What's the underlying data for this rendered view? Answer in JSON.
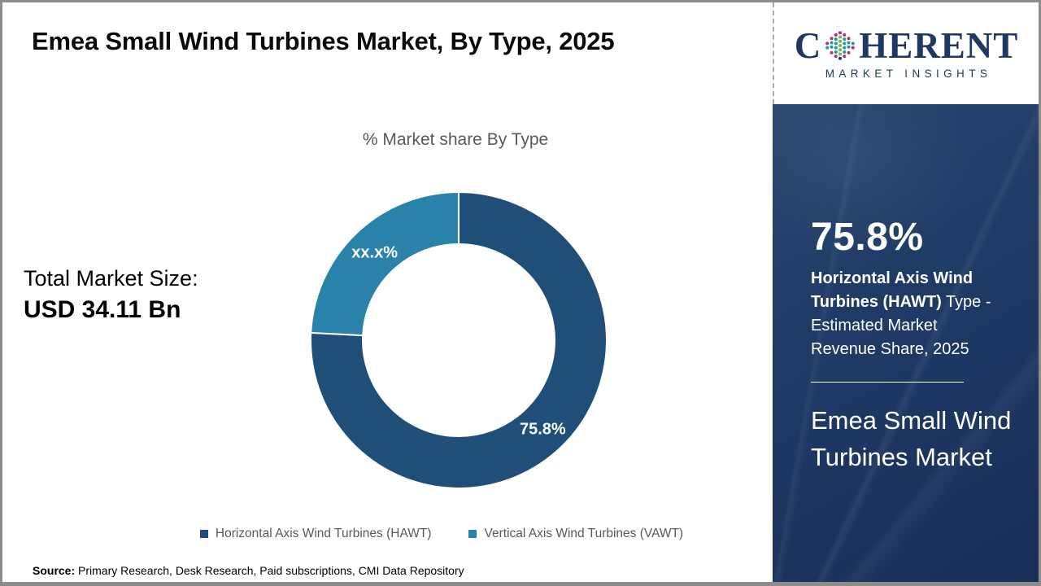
{
  "page": {
    "title": "Emea Small Wind Turbines Market, By Type, 2025"
  },
  "logo": {
    "brand_first_letter": "C",
    "brand_rest": "HERENT",
    "tagline": "MARKET INSIGHTS",
    "brand_color": "#1F3864"
  },
  "chart_data": {
    "type": "donut",
    "title": "% Market share By Type",
    "categories": [
      "Horizontal Axis Wind Turbines (HAWT)",
      "Vertical Axis Wind Turbines (VAWT)"
    ],
    "values": [
      75.8,
      24.2
    ],
    "slice_labels": [
      "75.8%",
      "xx.x%"
    ],
    "colors": [
      "#1F4E79",
      "#2882A9"
    ],
    "legend_position": "bottom",
    "start_angle_deg": 0,
    "direction": "clockwise"
  },
  "total": {
    "label": "Total Market Size:",
    "value": "USD 34.11 Bn"
  },
  "sidebar": {
    "stat_value": "75.8%",
    "stat_desc_bold": "Horizontal Axis Wind Turbines (HAWT)",
    "stat_desc_rest": " Type - Estimated Market Revenue Share, 2025",
    "market_name": "Emea Small Wind Turbines Market",
    "background_color": "#1E3B66"
  },
  "source": {
    "label": "Source:",
    "text": " Primary Research, Desk Research, Paid subscriptions, CMI Data Repository"
  }
}
